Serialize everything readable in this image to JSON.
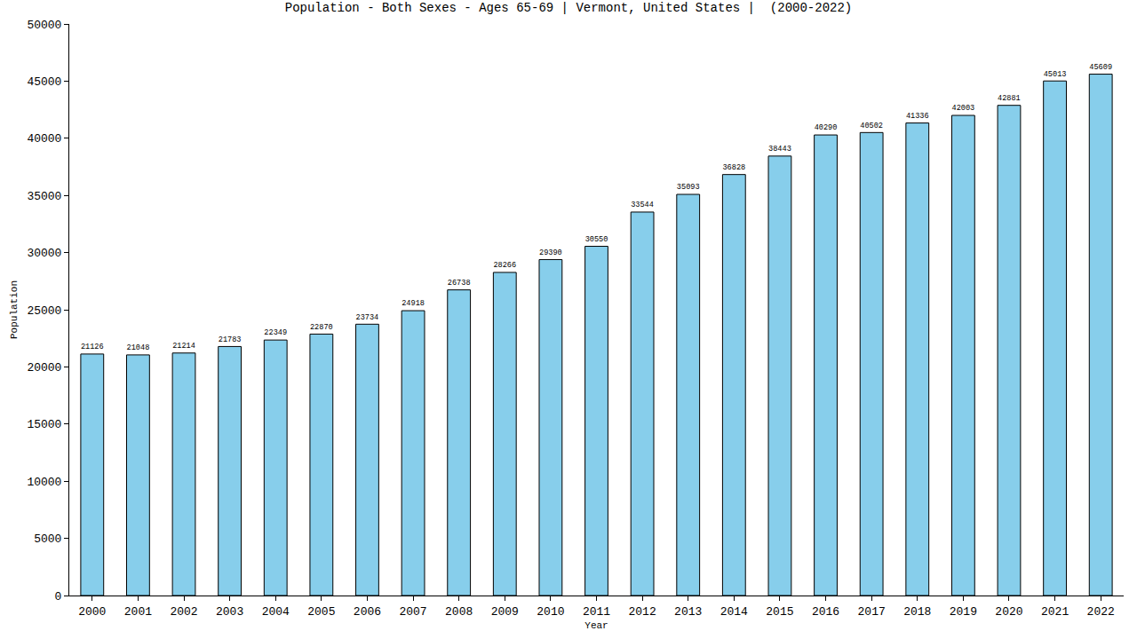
{
  "chart_data": {
    "type": "bar",
    "title": "Population - Both Sexes - Ages 65-69 | Vermont, United States |  (2000-2022)",
    "x_label": "Year",
    "y_label": "Population",
    "categories": [
      "2000",
      "2001",
      "2002",
      "2003",
      "2004",
      "2005",
      "2006",
      "2007",
      "2008",
      "2009",
      "2010",
      "2011",
      "2012",
      "2013",
      "2014",
      "2015",
      "2016",
      "2017",
      "2018",
      "2019",
      "2020",
      "2021",
      "2022"
    ],
    "values": [
      21126,
      21048,
      21214,
      21783,
      22349,
      22870,
      23734,
      24918,
      26738,
      28266,
      29390,
      30550,
      33544,
      35093,
      36828,
      38443,
      40290,
      40502,
      41336,
      42003,
      42881,
      45013,
      45609
    ],
    "color": "#87ceeb",
    "ylim": [
      0,
      50000
    ],
    "yticks": [
      0,
      5000,
      10000,
      15000,
      20000,
      25000,
      30000,
      35000,
      40000,
      45000,
      50000
    ],
    "grid": false,
    "data_labels": true
  }
}
